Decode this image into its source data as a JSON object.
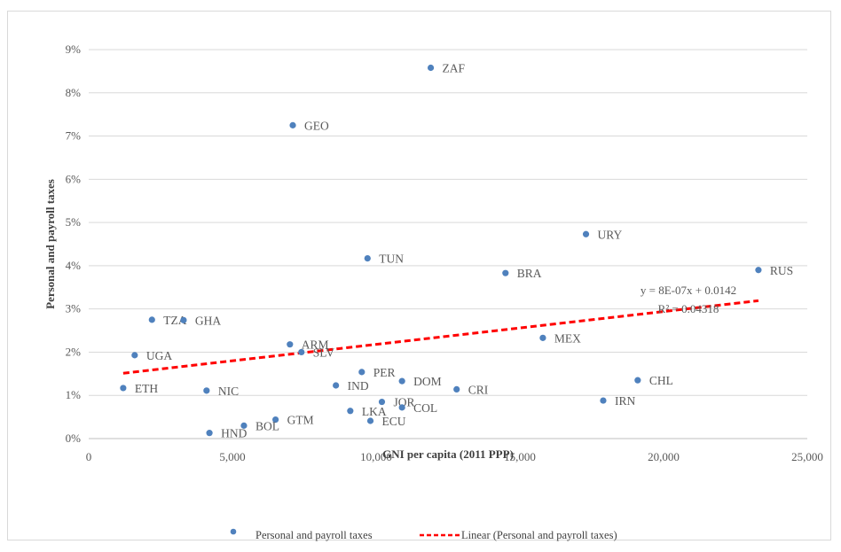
{
  "chart_data": {
    "type": "scatter",
    "xlabel": "GNI per capita (2011 PPP)",
    "ylabel": "Personal and payroll taxes",
    "xlim": [
      0,
      25000
    ],
    "ylim": [
      0,
      0.09
    ],
    "x_ticks": [
      0,
      5000,
      10000,
      15000,
      20000,
      25000
    ],
    "x_tick_labels": [
      "0",
      "5,000",
      "10,000",
      "15,000",
      "20,000",
      "25,000"
    ],
    "y_ticks": [
      0,
      0.01,
      0.02,
      0.03,
      0.04,
      0.05,
      0.06,
      0.07,
      0.08,
      0.09
    ],
    "y_tick_labels": [
      "0%",
      "1%",
      "2%",
      "3%",
      "4%",
      "5%",
      "6%",
      "7%",
      "8%",
      "9%"
    ],
    "grid": "horizontal",
    "legend_position": "bottom",
    "marker_color": "#4f81bd",
    "trend_color": "#ff0000",
    "series": [
      {
        "name": "Personal and payroll taxes",
        "points": [
          {
            "label": "ZAF",
            "x": 11900,
            "y": 0.0858
          },
          {
            "label": "GEO",
            "x": 7100,
            "y": 0.0725
          },
          {
            "label": "URY",
            "x": 17300,
            "y": 0.0473
          },
          {
            "label": "TUN",
            "x": 9700,
            "y": 0.0417
          },
          {
            "label": "RUS",
            "x": 23300,
            "y": 0.039
          },
          {
            "label": "BRA",
            "x": 14500,
            "y": 0.0383
          },
          {
            "label": "TZA",
            "x": 2200,
            "y": 0.0275
          },
          {
            "label": "GHA",
            "x": 3300,
            "y": 0.0274
          },
          {
            "label": "MEX",
            "x": 15800,
            "y": 0.0233
          },
          {
            "label": "ARM",
            "x": 7000,
            "y": 0.0218
          },
          {
            "label": "SLV",
            "x": 7400,
            "y": 0.02
          },
          {
            "label": "UGA",
            "x": 1600,
            "y": 0.0193
          },
          {
            "label": "PER",
            "x": 9500,
            "y": 0.0154
          },
          {
            "label": "CHL",
            "x": 19100,
            "y": 0.0135
          },
          {
            "label": "DOM",
            "x": 10900,
            "y": 0.0133
          },
          {
            "label": "IND",
            "x": 8600,
            "y": 0.0123
          },
          {
            "label": "ETH",
            "x": 1200,
            "y": 0.0117
          },
          {
            "label": "CRI",
            "x": 12800,
            "y": 0.0114
          },
          {
            "label": "NIC",
            "x": 4100,
            "y": 0.0111
          },
          {
            "label": "IRN",
            "x": 17900,
            "y": 0.0088
          },
          {
            "label": "JOR",
            "x": 10200,
            "y": 0.0085
          },
          {
            "label": "COL",
            "x": 10900,
            "y": 0.0072
          },
          {
            "label": "LKA",
            "x": 9100,
            "y": 0.0064
          },
          {
            "label": "GTM",
            "x": 6500,
            "y": 0.0044
          },
          {
            "label": "ECU",
            "x": 9800,
            "y": 0.0041
          },
          {
            "label": "BOL",
            "x": 5400,
            "y": 0.003
          },
          {
            "label": "HND",
            "x": 4200,
            "y": 0.0013
          }
        ]
      }
    ],
    "trendline": {
      "name": "Linear  (Personal and payroll taxes)",
      "slope": 7.6e-07,
      "intercept": 0.0142,
      "x_range": [
        1200,
        23300
      ],
      "equation": "y = 8E-07x + 0.0142",
      "r_squared": "R² = 0.04318"
    }
  }
}
